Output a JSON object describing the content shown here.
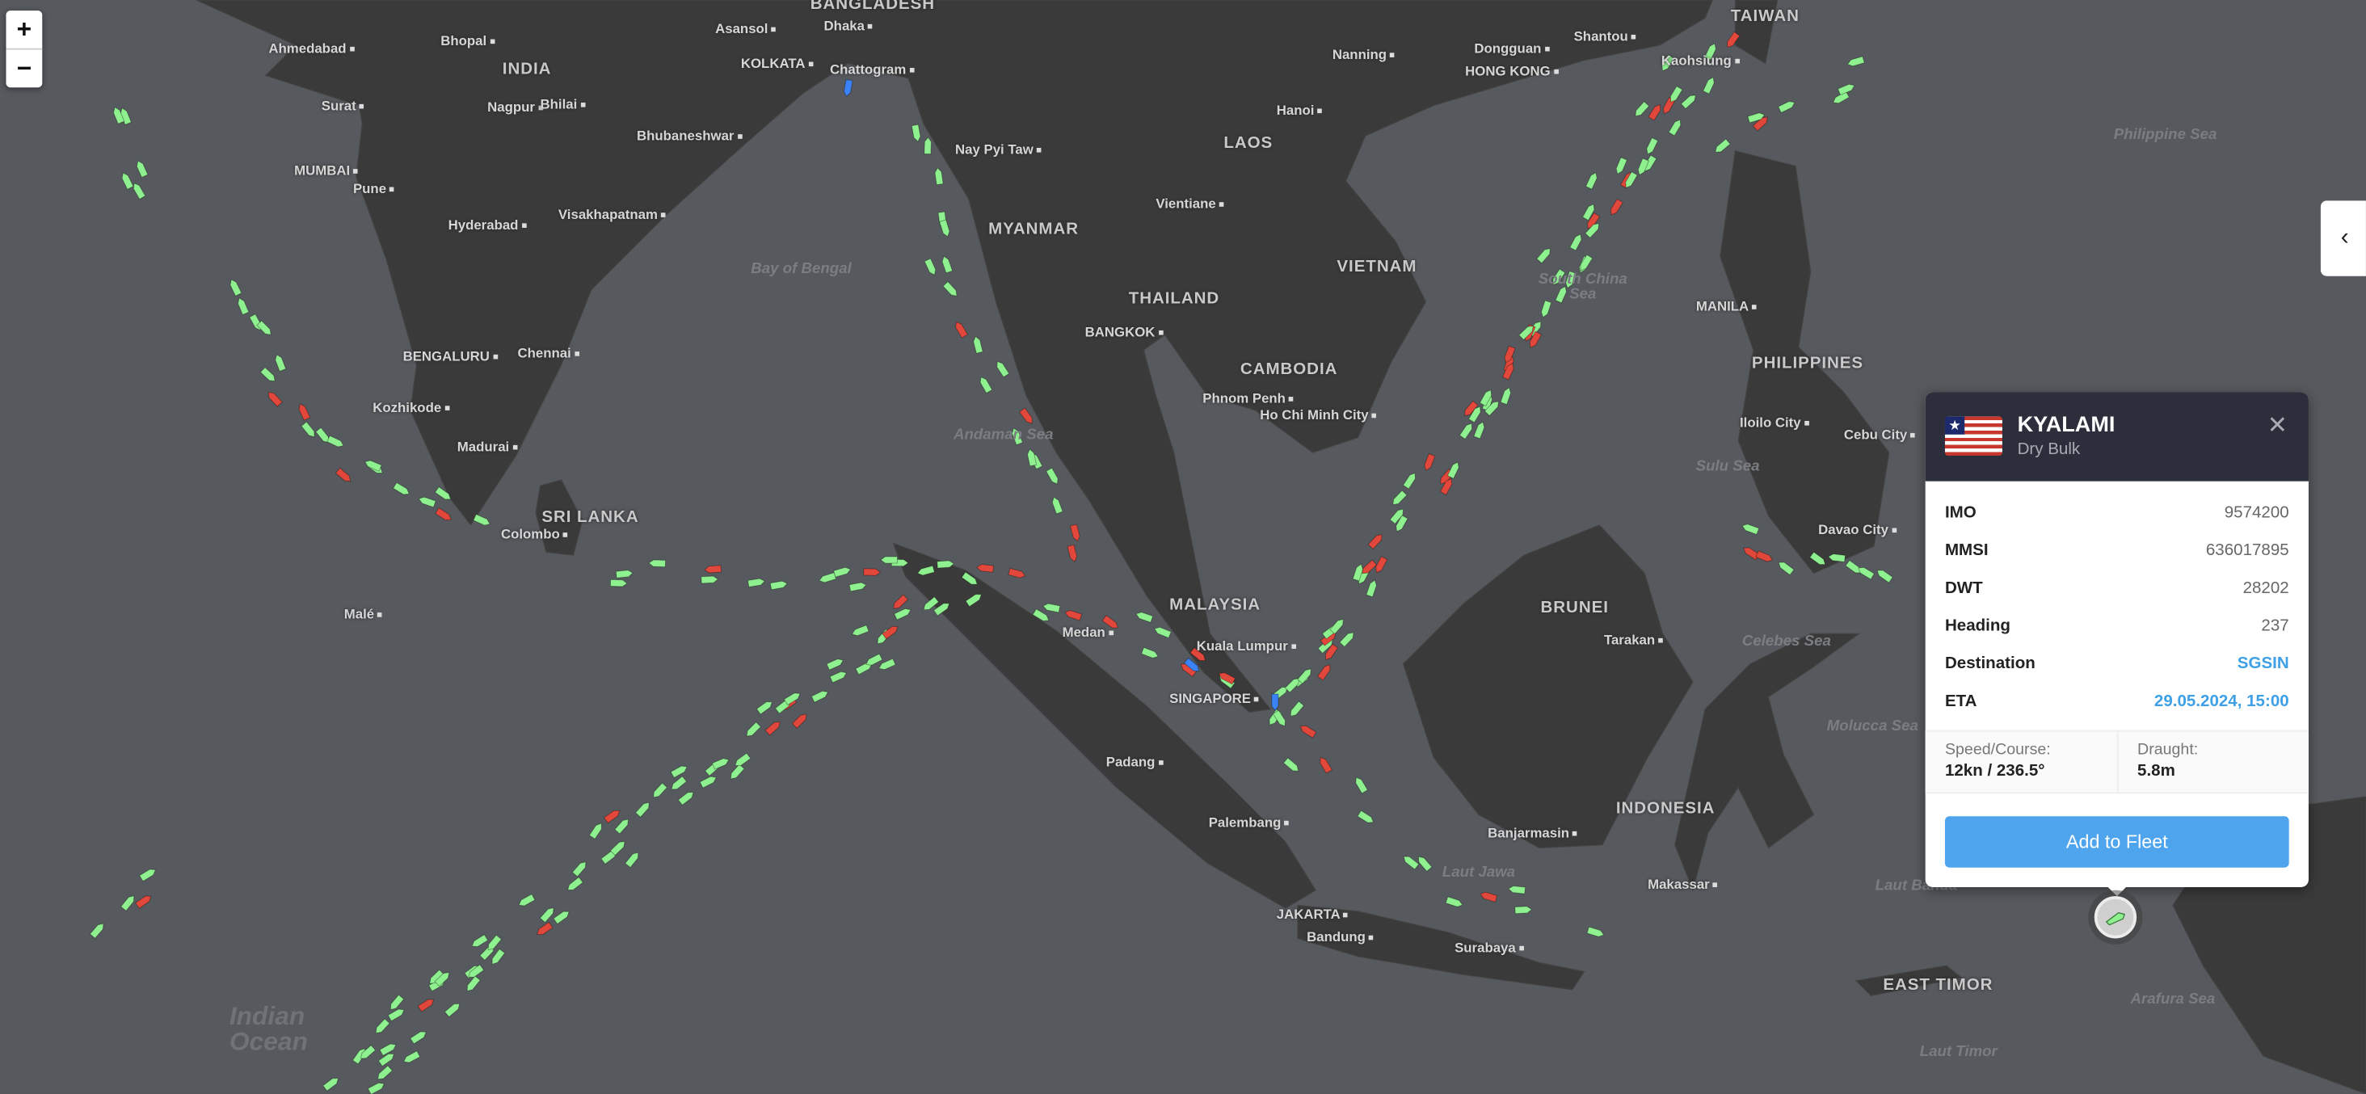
{
  "map": {
    "zoom_in": "+",
    "zoom_out": "−",
    "panel_toggle": "‹",
    "ship_colors": {
      "moving": "#8ff08f",
      "stopped": "#e2473b",
      "selected_type": "#3b82f6"
    },
    "labels": [
      {
        "text": "BANGLADESH",
        "kind": "country"
      },
      {
        "text": "Dhaka",
        "kind": "city"
      },
      {
        "text": "Asansol",
        "kind": "city"
      },
      {
        "text": "Bhopal",
        "kind": "city"
      },
      {
        "text": "Ahmedabad",
        "kind": "city"
      },
      {
        "text": "INDIA",
        "kind": "country"
      },
      {
        "text": "KOLKATA",
        "kind": "city"
      },
      {
        "text": "Chattogram",
        "kind": "city"
      },
      {
        "text": "Surat",
        "kind": "city"
      },
      {
        "text": "Nagpur",
        "kind": "city"
      },
      {
        "text": "Bhilai",
        "kind": "city"
      },
      {
        "text": "Bhubaneshwar",
        "kind": "city"
      },
      {
        "text": "MUMBAI",
        "kind": "city"
      },
      {
        "text": "Pune",
        "kind": "city"
      },
      {
        "text": "Visakhapatnam",
        "kind": "city"
      },
      {
        "text": "Hyderabad",
        "kind": "city"
      },
      {
        "text": "Bay of Bengal",
        "kind": "sea"
      },
      {
        "text": "BENGALURU",
        "kind": "city"
      },
      {
        "text": "Chennai",
        "kind": "city"
      },
      {
        "text": "Kozhikode",
        "kind": "city"
      },
      {
        "text": "Madurai",
        "kind": "city"
      },
      {
        "text": "SRI LANKA",
        "kind": "country"
      },
      {
        "text": "Colombo",
        "kind": "city"
      },
      {
        "text": "Malé",
        "kind": "city"
      },
      {
        "text": "Nay Pyi Taw",
        "kind": "city"
      },
      {
        "text": "MYANMAR",
        "kind": "country"
      },
      {
        "text": "Andaman Sea",
        "kind": "sea"
      },
      {
        "text": "THAILAND",
        "kind": "country"
      },
      {
        "text": "BANGKOK",
        "kind": "city"
      },
      {
        "text": "LAOS",
        "kind": "country"
      },
      {
        "text": "Vientiane",
        "kind": "city"
      },
      {
        "text": "Hanoi",
        "kind": "city"
      },
      {
        "text": "Nanning",
        "kind": "city"
      },
      {
        "text": "VIETNAM",
        "kind": "country"
      },
      {
        "text": "CAMBODIA",
        "kind": "country"
      },
      {
        "text": "Phnom Penh",
        "kind": "city"
      },
      {
        "text": "Ho Chi Minh City",
        "kind": "city"
      },
      {
        "text": "MALAYSIA",
        "kind": "country"
      },
      {
        "text": "Kuala Lumpur",
        "kind": "city"
      },
      {
        "text": "Medan",
        "kind": "city"
      },
      {
        "text": "SINGAPORE",
        "kind": "city"
      },
      {
        "text": "Padang",
        "kind": "city"
      },
      {
        "text": "Palembang",
        "kind": "city"
      },
      {
        "text": "JAKARTA",
        "kind": "city"
      },
      {
        "text": "Bandung",
        "kind": "city"
      },
      {
        "text": "Surabaya",
        "kind": "city"
      },
      {
        "text": "Banjarmasin",
        "kind": "city"
      },
      {
        "text": "INDONESIA",
        "kind": "country"
      },
      {
        "text": "Makassar",
        "kind": "city"
      },
      {
        "text": "BRUNEI",
        "kind": "country"
      },
      {
        "text": "Tarakan",
        "kind": "city"
      },
      {
        "text": "Dongguan",
        "kind": "city"
      },
      {
        "text": "HONG KONG",
        "kind": "city"
      },
      {
        "text": "Shantou",
        "kind": "city"
      },
      {
        "text": "Kaohsiung",
        "kind": "city"
      },
      {
        "text": "TAIWAN",
        "kind": "country"
      },
      {
        "text": "South China Sea",
        "kind": "sea"
      },
      {
        "text": "MANILA",
        "kind": "city"
      },
      {
        "text": "PHILIPPINES",
        "kind": "country"
      },
      {
        "text": "Iloilo City",
        "kind": "city"
      },
      {
        "text": "Cebu City",
        "kind": "city"
      },
      {
        "text": "Sulu Sea",
        "kind": "sea"
      },
      {
        "text": "Davao City",
        "kind": "city"
      },
      {
        "text": "Philippine Sea",
        "kind": "sea"
      },
      {
        "text": "Celebes Sea",
        "kind": "sea"
      },
      {
        "text": "Molucca Sea",
        "kind": "sea"
      },
      {
        "text": "Laut Banda",
        "kind": "sea"
      },
      {
        "text": "EAST TIMOR",
        "kind": "country"
      },
      {
        "text": "Arafura Sea",
        "kind": "sea"
      },
      {
        "text": "Laut Timor",
        "kind": "sea"
      },
      {
        "text": "Laut Jawa",
        "kind": "sea"
      },
      {
        "text": "Indian Ocean",
        "kind": "ocean"
      }
    ]
  },
  "vessel": {
    "name": "KYALAMI",
    "type": "Dry Bulk",
    "flag_icon": "liberia-flag-icon",
    "close_label": "✕",
    "fields": [
      {
        "label": "IMO",
        "value": "9574200"
      },
      {
        "label": "MMSI",
        "value": "636017895"
      },
      {
        "label": "DWT",
        "value": "28202"
      },
      {
        "label": "Heading",
        "value": "237"
      },
      {
        "label": "Destination",
        "value": "SGSIN"
      },
      {
        "label": "ETA",
        "value": "29.05.2024, 15:00"
      }
    ],
    "speed_course_label": "Speed/Course:",
    "speed_course_value": "12kn / 236.5°",
    "draught_label": "Draught:",
    "draught_value": "5.8m",
    "add_button": "Add to Fleet"
  }
}
